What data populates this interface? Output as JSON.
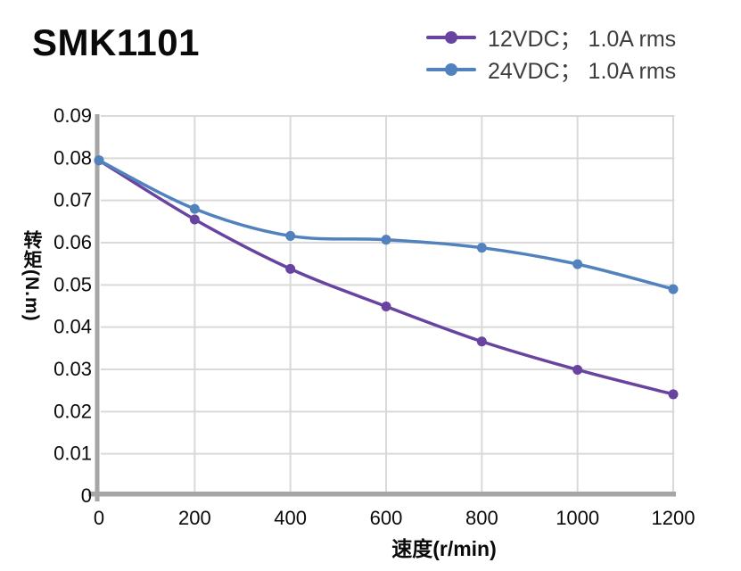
{
  "title": "SMK1101",
  "legend": {
    "position": "top-right",
    "items": [
      {
        "label": "12VDC； 1.0A rms",
        "color": "#6843A0",
        "marker": "line-dot-icon"
      },
      {
        "label": "24VDC； 1.0A rms",
        "color": "#5182BE",
        "marker": "line-dot-icon"
      }
    ]
  },
  "chart_data": {
    "type": "line",
    "title": "SMK1101",
    "xlabel": "速度(r/min)",
    "ylabel": "转矩(N.m)",
    "x": [
      0,
      200,
      400,
      600,
      800,
      1000,
      1200
    ],
    "series": [
      {
        "name": "12VDC； 1.0A rms",
        "color": "#6843A0",
        "values": [
          0.0795,
          0.0655,
          0.0538,
          0.0449,
          0.0366,
          0.0299,
          0.0241
        ]
      },
      {
        "name": "24VDC； 1.0A rms",
        "color": "#5182BE",
        "values": [
          0.0795,
          0.068,
          0.0616,
          0.0607,
          0.0588,
          0.0549,
          0.049
        ]
      }
    ],
    "xlim": [
      0,
      1200
    ],
    "ylim": [
      0,
      0.09
    ],
    "x_tick_labels": [
      "0",
      "200",
      "400",
      "600",
      "800",
      "1000",
      "1200"
    ],
    "y_tick_labels": [
      "0",
      "0.01",
      "0.02",
      "0.03",
      "0.04",
      "0.05",
      "0.06",
      "0.07",
      "0.08",
      "0.09"
    ],
    "grid": true,
    "line_smooth": true,
    "marker": "circle",
    "legend_position": "top-right"
  },
  "colors": {
    "grid": "#D9D9D9",
    "axis": "#A6A6A6",
    "tick_text": "#0a0a0a",
    "legend_text": "#3d3d3d",
    "title_text": "#0a0a0a",
    "background": "#FFFFFF"
  }
}
